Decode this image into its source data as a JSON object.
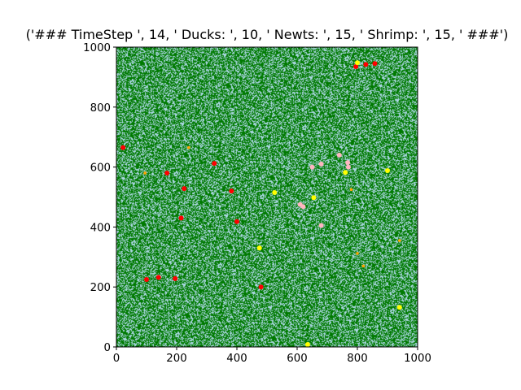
{
  "chart_data": {
    "type": "scatter",
    "title": "('### TimeStep ', 14, ' Ducks: ', 10, ' Newts: ', 15, ' Shrimp: ', 15, ' ###')",
    "xlabel": "",
    "ylabel": "",
    "xlim": [
      0,
      1000
    ],
    "ylim": [
      0,
      1000
    ],
    "xticks": [
      0,
      200,
      400,
      600,
      800,
      1000
    ],
    "yticks": [
      0,
      200,
      400,
      600,
      800,
      1000
    ],
    "xtick_labels": [
      "0",
      "200",
      "400",
      "600",
      "800",
      "1000"
    ],
    "ytick_labels": [
      "0",
      "200",
      "400",
      "600",
      "800",
      "1000"
    ],
    "grid": false,
    "background": {
      "type": "heatmap",
      "description_colors": [
        "#007a00",
        "#add8e6"
      ],
      "green_fraction": 0.62
    },
    "series": [
      {
        "color": "#ff0000",
        "points": [
          [
            22,
            665
          ],
          [
            168,
            580
          ],
          [
            225,
            528
          ],
          [
            325,
            612
          ],
          [
            382,
            520
          ],
          [
            400,
            418
          ],
          [
            215,
            430
          ],
          [
            100,
            225
          ],
          [
            140,
            232
          ],
          [
            195,
            228
          ],
          [
            480,
            200
          ],
          [
            795,
            935
          ],
          [
            828,
            942
          ],
          [
            858,
            945
          ]
        ]
      },
      {
        "color": "#ffff00",
        "points": [
          [
            800,
            948
          ],
          [
            900,
            588
          ],
          [
            760,
            582
          ],
          [
            525,
            515
          ],
          [
            655,
            498
          ],
          [
            475,
            330
          ],
          [
            940,
            132
          ],
          [
            635,
            8
          ]
        ]
      },
      {
        "color": "#ffb6c1",
        "points": [
          [
            740,
            640
          ],
          [
            768,
            615
          ],
          [
            680,
            610
          ],
          [
            650,
            600
          ],
          [
            610,
            475
          ],
          [
            620,
            468
          ],
          [
            680,
            405
          ],
          [
            770,
            600
          ]
        ]
      },
      {
        "color": "#ffa500",
        "points": [
          [
            240,
            665
          ],
          [
            95,
            580
          ],
          [
            780,
            525
          ],
          [
            800,
            312
          ],
          [
            940,
            355
          ],
          [
            820,
            270
          ]
        ]
      }
    ]
  }
}
